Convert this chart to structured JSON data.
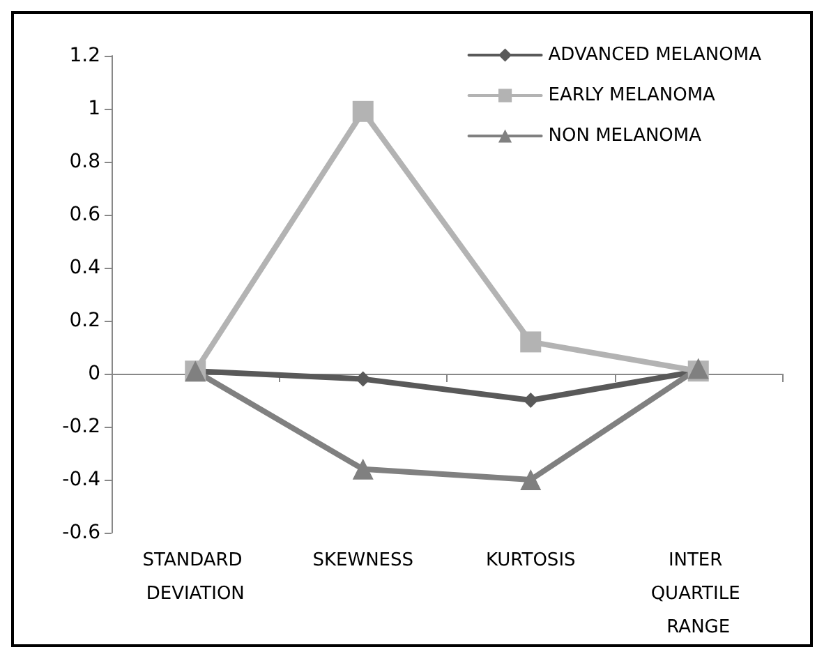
{
  "chart_data": {
    "type": "line",
    "categories": [
      "STANDARD DEVIATION",
      "SKEWNESS",
      "KURTOSIS",
      "INTER QUARTILE RANGE"
    ],
    "series": [
      {
        "name": "ADVANCED MELANOMA",
        "color": "#595959",
        "marker": "diamond",
        "values": [
          0.01,
          -0.02,
          -0.1,
          0.01
        ]
      },
      {
        "name": "EARLY MELANOMA",
        "color": "#b3b3b3",
        "marker": "square",
        "values": [
          0.01,
          0.99,
          0.12,
          0.01
        ]
      },
      {
        "name": "NON MELANOMA",
        "color": "#808080",
        "marker": "triangle",
        "values": [
          0.01,
          -0.36,
          -0.4,
          0.02
        ]
      }
    ],
    "ylim": [
      -0.6,
      1.2
    ],
    "yticks": [
      -0.6,
      -0.4,
      -0.2,
      0,
      0.2,
      0.4,
      0.6,
      0.8,
      1,
      1.2
    ],
    "legend": "top right",
    "line_style": "solid"
  }
}
